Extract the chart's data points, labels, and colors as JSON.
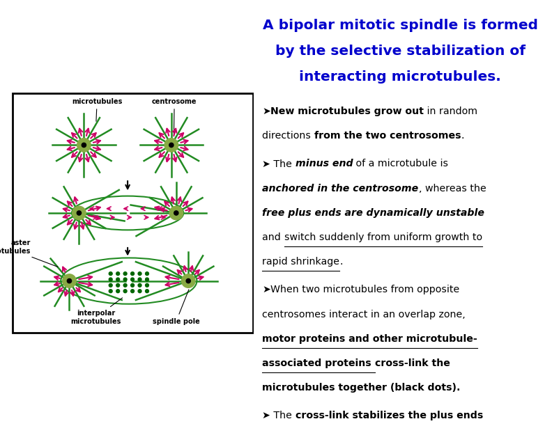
{
  "title_line1": "A bipolar mitotic spindle is formed",
  "title_line2": "by the selective stabilization of",
  "title_line3": "interacting microtubules.",
  "title_color": "#0000CC",
  "title_fontsize": 14.5,
  "text_fontsize": 10.2,
  "text_color": "#000000",
  "bg_color": "#FFFFFF",
  "green": "#228B22",
  "pink": "#CC0066",
  "centrosome_color": "#88AA44"
}
